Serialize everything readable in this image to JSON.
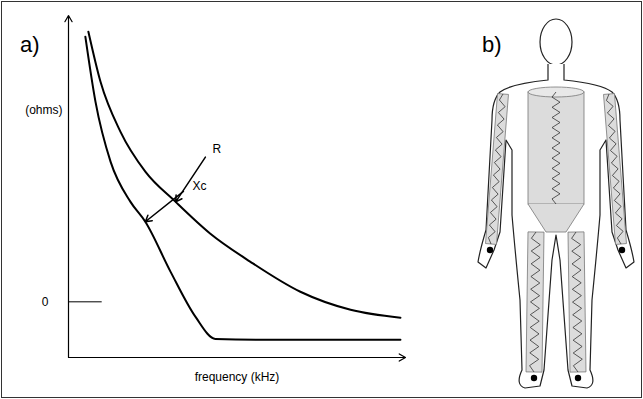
{
  "chart_data": {
    "type": "line",
    "panel_label": "a)",
    "x_label": "frequency (kHz)",
    "y_label": "(ohms)",
    "xlim": [
      0,
      100
    ],
    "ylim": [
      -21,
      108
    ],
    "xticks": [],
    "yticks": [
      0
    ],
    "tick_labels": "y",
    "series": [
      {
        "name": "R",
        "color": "#000000",
        "x": [
          5.9,
          9.5,
          15.4,
          22.8,
          31.8,
          42.1,
          54.0,
          68.8,
          83.7,
          98.5
        ],
        "values": [
          101.9,
          83.0,
          64.2,
          49.1,
          37.7,
          25.7,
          15.1,
          3.8,
          -3.0,
          -6.0
        ]
      },
      {
        "name": "Xc",
        "color": "#000000",
        "x": [
          5.0,
          8.0,
          12.5,
          18.4,
          22.8,
          30.3,
          37.7,
          43.6,
          57.0,
          77.7,
          98.5
        ],
        "values": [
          100.0,
          75.5,
          52.8,
          37.7,
          30.2,
          11.3,
          -5.7,
          -14.0,
          -14.3,
          -14.3,
          -14.3
        ]
      }
    ],
    "annotations": [
      {
        "text": "R",
        "x": 42.1,
        "y": 57.4,
        "arrow_x": 31.8,
        "arrow_y": 37.7
      },
      {
        "text": "Xc",
        "x": 36.2,
        "y": 43.8,
        "arrow_x": 22.8,
        "arrow_y": 30.2
      }
    ]
  },
  "diagram": {
    "panel_label": "b)"
  }
}
